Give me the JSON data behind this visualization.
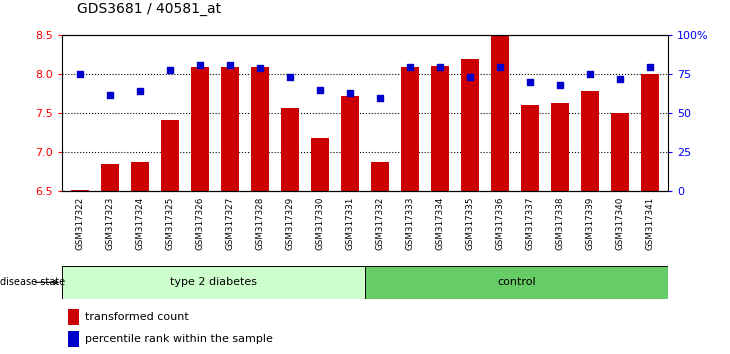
{
  "title": "GDS3681 / 40581_at",
  "samples": [
    "GSM317322",
    "GSM317323",
    "GSM317324",
    "GSM317325",
    "GSM317326",
    "GSM317327",
    "GSM317328",
    "GSM317329",
    "GSM317330",
    "GSM317331",
    "GSM317332",
    "GSM317333",
    "GSM317334",
    "GSM317335",
    "GSM317336",
    "GSM317337",
    "GSM317338",
    "GSM317339",
    "GSM317340",
    "GSM317341"
  ],
  "transformed_count": [
    6.52,
    6.85,
    6.87,
    7.42,
    8.1,
    8.1,
    8.1,
    7.57,
    7.18,
    7.72,
    6.88,
    8.1,
    8.11,
    8.2,
    8.5,
    7.6,
    7.63,
    7.78,
    7.5,
    8.0
  ],
  "percentile_rank": [
    75,
    62,
    64,
    78,
    81,
    81,
    79,
    73,
    65,
    63,
    60,
    80,
    80,
    73,
    80,
    70,
    68,
    75,
    72,
    80
  ],
  "group_labels": [
    "type 2 diabetes",
    "control"
  ],
  "ylim": [
    6.5,
    8.5
  ],
  "yticks_left": [
    6.5,
    7.0,
    7.5,
    8.0,
    8.5
  ],
  "yticks_right": [
    0,
    25,
    50,
    75,
    100
  ],
  "bar_color": "#cc0000",
  "dot_color": "#0000cc",
  "bg_color": "#c8c8c8",
  "group1_color": "#ccffcc",
  "group2_color": "#66cc66",
  "legend_items": [
    "transformed count",
    "percentile rank within the sample"
  ]
}
